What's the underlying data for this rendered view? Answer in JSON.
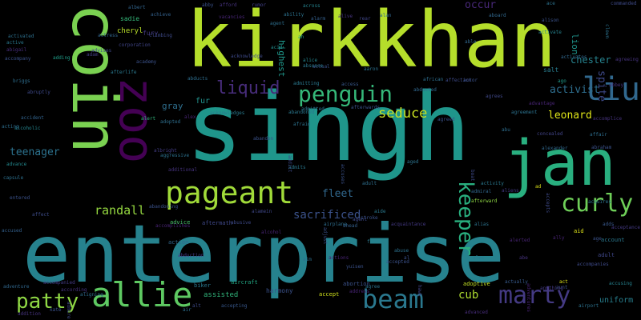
{
  "words": [
    {
      "text": "enterprise",
      "color": "#26828e"
    },
    {
      "text": "singh",
      "color": "#1f968b"
    },
    {
      "text": "kirkkhan",
      "color": "#b5de2b"
    },
    {
      "text": "coin",
      "color": "#7ad151"
    },
    {
      "text": "jan",
      "color": "#29af7f"
    },
    {
      "text": "zoo",
      "color": "#440154"
    },
    {
      "text": "pageant",
      "color": "#a0da39"
    },
    {
      "text": "allie",
      "color": "#5ec962"
    },
    {
      "text": "liu",
      "color": "#31688e"
    },
    {
      "text": "penguin",
      "color": "#35b779"
    },
    {
      "text": "beam",
      "color": "#2a788e"
    },
    {
      "text": "marty",
      "color": "#443a83"
    },
    {
      "text": "curly",
      "color": "#6ece58"
    },
    {
      "text": "keeper",
      "color": "#29af7f"
    },
    {
      "text": "patty",
      "color": "#8fd744"
    },
    {
      "text": "liquid",
      "color": "#472c7a"
    },
    {
      "text": "seduce",
      "color": "#c8e020"
    },
    {
      "text": "randall",
      "color": "#95d840"
    },
    {
      "text": "leonard",
      "color": "#dde318"
    },
    {
      "text": "activist",
      "color": "#2e6e8e"
    },
    {
      "text": "spite",
      "color": "#3e4989"
    },
    {
      "text": "sacrificed",
      "color": "#3b528b"
    },
    {
      "text": "fleet",
      "color": "#31688e"
    },
    {
      "text": "teenager",
      "color": "#2c728e"
    },
    {
      "text": "cub",
      "color": "#addc30"
    },
    {
      "text": "occur",
      "color": "#482878"
    },
    {
      "text": "chester",
      "color": "#26828e"
    },
    {
      "text": "uniform",
      "color": "#277f8e"
    },
    {
      "text": "lion",
      "color": "#1f948c"
    },
    {
      "text": "gray",
      "color": "#2e6f8e"
    },
    {
      "text": "fur",
      "color": "#21918c"
    },
    {
      "text": "harmony",
      "color": "#3b528b"
    },
    {
      "text": "assisted",
      "color": "#31b57b"
    },
    {
      "text": "highest",
      "color": "#1f978b"
    },
    {
      "text": "cheryl",
      "color": "#b8de29"
    },
    {
      "text": "sadie",
      "color": "#35b779"
    },
    {
      "text": "fury",
      "color": "#443983"
    },
    {
      "text": "salt",
      "color": "#287c8e"
    },
    {
      "text": "adult",
      "color": "#3f4788"
    },
    {
      "text": "account",
      "color": "#2a788e"
    },
    {
      "text": "aid",
      "color": "#dde318"
    },
    {
      "text": "action",
      "color": "#31688e"
    },
    {
      "text": "advice",
      "color": "#4ac16d"
    },
    {
      "text": "aftermath",
      "color": "#3f4889"
    },
    {
      "text": "aircraft",
      "color": "#22a884"
    },
    {
      "text": "biker",
      "color": "#2a788e"
    },
    {
      "text": "abortion",
      "color": "#3b528b"
    },
    {
      "text": "adoptive",
      "color": "#c2df23"
    },
    {
      "text": "actually",
      "color": "#375a8c"
    },
    {
      "text": "accompanies",
      "color": "#3e4a89"
    },
    {
      "text": "accusing",
      "color": "#26828e"
    },
    {
      "text": "adventure",
      "color": "#31688e"
    },
    {
      "text": "accompanied",
      "color": "#443b84"
    },
    {
      "text": "abuse",
      "color": "#2c718e"
    },
    {
      "text": "accepted",
      "color": "#3b528b"
    },
    {
      "text": "accept",
      "color": "#d0e11c"
    },
    {
      "text": "agree",
      "color": "#2c738e"
    },
    {
      "text": "advanced",
      "color": "#472d7b"
    },
    {
      "text": "addition",
      "color": "#46337e"
    },
    {
      "text": "accepting",
      "color": "#38588c"
    },
    {
      "text": "alert",
      "color": "#31b57b"
    },
    {
      "text": "adopted",
      "color": "#2e6f8e"
    },
    {
      "text": "alex",
      "color": "#482475"
    },
    {
      "text": "acknowledges",
      "color": "#297b8e"
    },
    {
      "text": "abandoned",
      "color": "#2a788e"
    },
    {
      "text": "afraid",
      "color": "#2c738e"
    },
    {
      "text": "alcoholic",
      "color": "#25858e"
    },
    {
      "text": "accident",
      "color": "#32648e"
    },
    {
      "text": "acting",
      "color": "#2e6e8e"
    },
    {
      "text": "advance",
      "color": "#23898e"
    },
    {
      "text": "capsule",
      "color": "#2d708e"
    },
    {
      "text": "entered",
      "color": "#3b528b"
    },
    {
      "text": "affect",
      "color": "#3e4c8a"
    },
    {
      "text": "accused",
      "color": "#34608d"
    },
    {
      "text": "activated",
      "color": "#2d708e"
    },
    {
      "text": "active",
      "color": "#2a788e"
    },
    {
      "text": "abigail",
      "color": "#472d7b"
    },
    {
      "text": "accompany",
      "color": "#3b528b"
    },
    {
      "text": "briggs",
      "color": "#2e6e8e"
    },
    {
      "text": "abruptly",
      "color": "#3e4989"
    },
    {
      "text": "adding",
      "color": "#1f9e89"
    },
    {
      "text": "advises",
      "color": "#3f4788"
    },
    {
      "text": "adam",
      "color": "#433e85"
    },
    {
      "text": "actress",
      "color": "#32658e"
    },
    {
      "text": "corporation",
      "color": "#404588"
    },
    {
      "text": "climbing",
      "color": "#3e4a89"
    },
    {
      "text": "academy",
      "color": "#3b528b"
    },
    {
      "text": "albert",
      "color": "#32658e"
    },
    {
      "text": "achieve",
      "color": "#34618d"
    },
    {
      "text": "abby",
      "color": "#3b528b"
    },
    {
      "text": "afford",
      "color": "#46327e"
    },
    {
      "text": "rumor",
      "color": "#424086"
    },
    {
      "text": "across",
      "color": "#25838e"
    },
    {
      "text": "vacancies",
      "color": "#482576"
    },
    {
      "text": "ability",
      "color": "#2c728e"
    },
    {
      "text": "abducted",
      "color": "#31688e"
    },
    {
      "text": "alarm",
      "color": "#35608d"
    },
    {
      "text": "agent",
      "color": "#2e6f8e"
    },
    {
      "text": "alan",
      "color": "#31688e"
    },
    {
      "text": "rear",
      "color": "#404688"
    },
    {
      "text": "aboard",
      "color": "#31688e"
    },
    {
      "text": "alison",
      "color": "#3b528b"
    },
    {
      "text": "activate",
      "color": "#26828e"
    },
    {
      "text": "ace",
      "color": "#2c738e"
    },
    {
      "text": "commanded",
      "color": "#3e4a89"
    },
    {
      "text": "agreeing",
      "color": "#46337e"
    },
    {
      "text": "clown",
      "color": "#2c728e"
    },
    {
      "text": "abbey",
      "color": "#46337e"
    },
    {
      "text": "ago",
      "color": "#1f9a8a"
    },
    {
      "text": "abducts",
      "color": "#2e6e8e"
    },
    {
      "text": "afterlife",
      "color": "#2a788e"
    },
    {
      "text": "acknowledge",
      "color": "#3e4a89"
    },
    {
      "text": "acid",
      "color": "#228d8d"
    },
    {
      "text": "alice",
      "color": "#25858e"
    },
    {
      "text": "actual",
      "color": "#3b528b"
    },
    {
      "text": "admitting",
      "color": "#2a788e"
    },
    {
      "text": "access",
      "color": "#38588c"
    },
    {
      "text": "admitted",
      "color": "#2c738e"
    },
    {
      "text": "afterwards",
      "color": "#3b528b"
    },
    {
      "text": "african",
      "color": "#2e6e8e"
    },
    {
      "text": "affection",
      "color": "#3e4a89"
    },
    {
      "text": "actor",
      "color": "#3b528b"
    },
    {
      "text": "agrees",
      "color": "#3f4788"
    },
    {
      "text": "advantage",
      "color": "#482576"
    },
    {
      "text": "agreement",
      "color": "#2c728e"
    },
    {
      "text": "accomplice",
      "color": "#46337e"
    },
    {
      "text": "concealed",
      "color": "#414487"
    },
    {
      "text": "affair",
      "color": "#2e6e8e"
    },
    {
      "text": "alexander",
      "color": "#31688e"
    },
    {
      "text": "abraham",
      "color": "#3b528b"
    },
    {
      "text": "activity",
      "color": "#2a788e"
    },
    {
      "text": "afterward",
      "color": "#8fd744"
    },
    {
      "text": "admiral",
      "color": "#31688e"
    },
    {
      "text": "alias",
      "color": "#2c738e"
    },
    {
      "text": "alerted",
      "color": "#482475"
    },
    {
      "text": "airport",
      "color": "#2c728e"
    },
    {
      "text": "aide",
      "color": "#2a788e"
    },
    {
      "text": "stroke",
      "color": "#3b528b"
    },
    {
      "text": "acquaintance",
      "color": "#443983"
    },
    {
      "text": "ahead",
      "color": "#35608d"
    },
    {
      "text": "airplane",
      "color": "#2e6e8e"
    },
    {
      "text": "alamein",
      "color": "#3f4788"
    },
    {
      "text": "adult",
      "color": "#2e6f8e"
    },
    {
      "text": "admits",
      "color": "#2a788e"
    },
    {
      "text": "abandon",
      "color": "#3b528b"
    },
    {
      "text": "aged",
      "color": "#2c738e"
    },
    {
      "text": "addict",
      "color": "#3e4a89"
    },
    {
      "text": "additional",
      "color": "#46337e"
    },
    {
      "text": "albright",
      "color": "#433e85"
    },
    {
      "text": "aggressive",
      "color": "#2c728e"
    },
    {
      "text": "hawk",
      "color": "#414487"
    },
    {
      "text": "adjust",
      "color": "#3b528b"
    },
    {
      "text": "alcohol",
      "color": "#482475"
    },
    {
      "text": "abusive",
      "color": "#3e4a89"
    },
    {
      "text": "abandoning",
      "color": "#3b528b"
    },
    {
      "text": "accomplishes",
      "color": "#482475"
    },
    {
      "text": "abduction",
      "color": "#443983"
    },
    {
      "text": "air",
      "color": "#2e6f8e"
    },
    {
      "text": "ad",
      "color": "#dde318"
    },
    {
      "text": "activates",
      "color": "#31688e"
    },
    {
      "text": "al",
      "color": "#3b528b"
    },
    {
      "text": "alec",
      "color": "#2a788e"
    },
    {
      "text": "abe",
      "color": "#46337e"
    },
    {
      "text": "adds",
      "color": "#38588c"
    },
    {
      "text": "accepts",
      "color": "#3e4a89"
    },
    {
      "text": "aaron",
      "color": "#2c728e"
    },
    {
      "text": "able",
      "color": "#31688e"
    },
    {
      "text": "agreed",
      "color": "#3b528b"
    },
    {
      "text": "abu",
      "color": "#2e6e8e"
    },
    {
      "text": "f",
      "color": "#2a788e"
    },
    {
      "text": "ah",
      "color": "#1f9e89"
    },
    {
      "text": "aim",
      "color": "#2e6f8e"
    },
    {
      "text": "accuses",
      "color": "#3b528b"
    },
    {
      "text": "alive",
      "color": "#46337e"
    },
    {
      "text": "boat",
      "color": "#3e4a89"
    },
    {
      "text": "aliens",
      "color": "#443983"
    },
    {
      "text": "age",
      "color": "#3b528b"
    },
    {
      "text": "absence",
      "color": "#2a788e"
    },
    {
      "text": "admire",
      "color": "#3e4a89"
    },
    {
      "text": "kate",
      "color": "#3b528b"
    },
    {
      "text": "act",
      "color": "#dde318"
    },
    {
      "text": "acquires",
      "color": "#2c738e"
    },
    {
      "text": "adventures",
      "color": "#482475"
    },
    {
      "text": "aunt",
      "color": "#3b528b"
    },
    {
      "text": "anything",
      "color": "#443983"
    },
    {
      "text": "agent",
      "color": "#3e4a89"
    },
    {
      "text": "address",
      "color": "#482475"
    },
    {
      "text": "actions",
      "color": "#482475"
    },
    {
      "text": "yuisen",
      "color": "#3b528b"
    },
    {
      "text": "according",
      "color": "#46337e"
    },
    {
      "text": "aligning",
      "color": "#2e6e8e"
    },
    {
      "text": "alt",
      "color": "#3e4a89"
    },
    {
      "text": "ally",
      "color": "#482475"
    },
    {
      "text": "acceptance",
      "color": "#443983"
    }
  ]
}
